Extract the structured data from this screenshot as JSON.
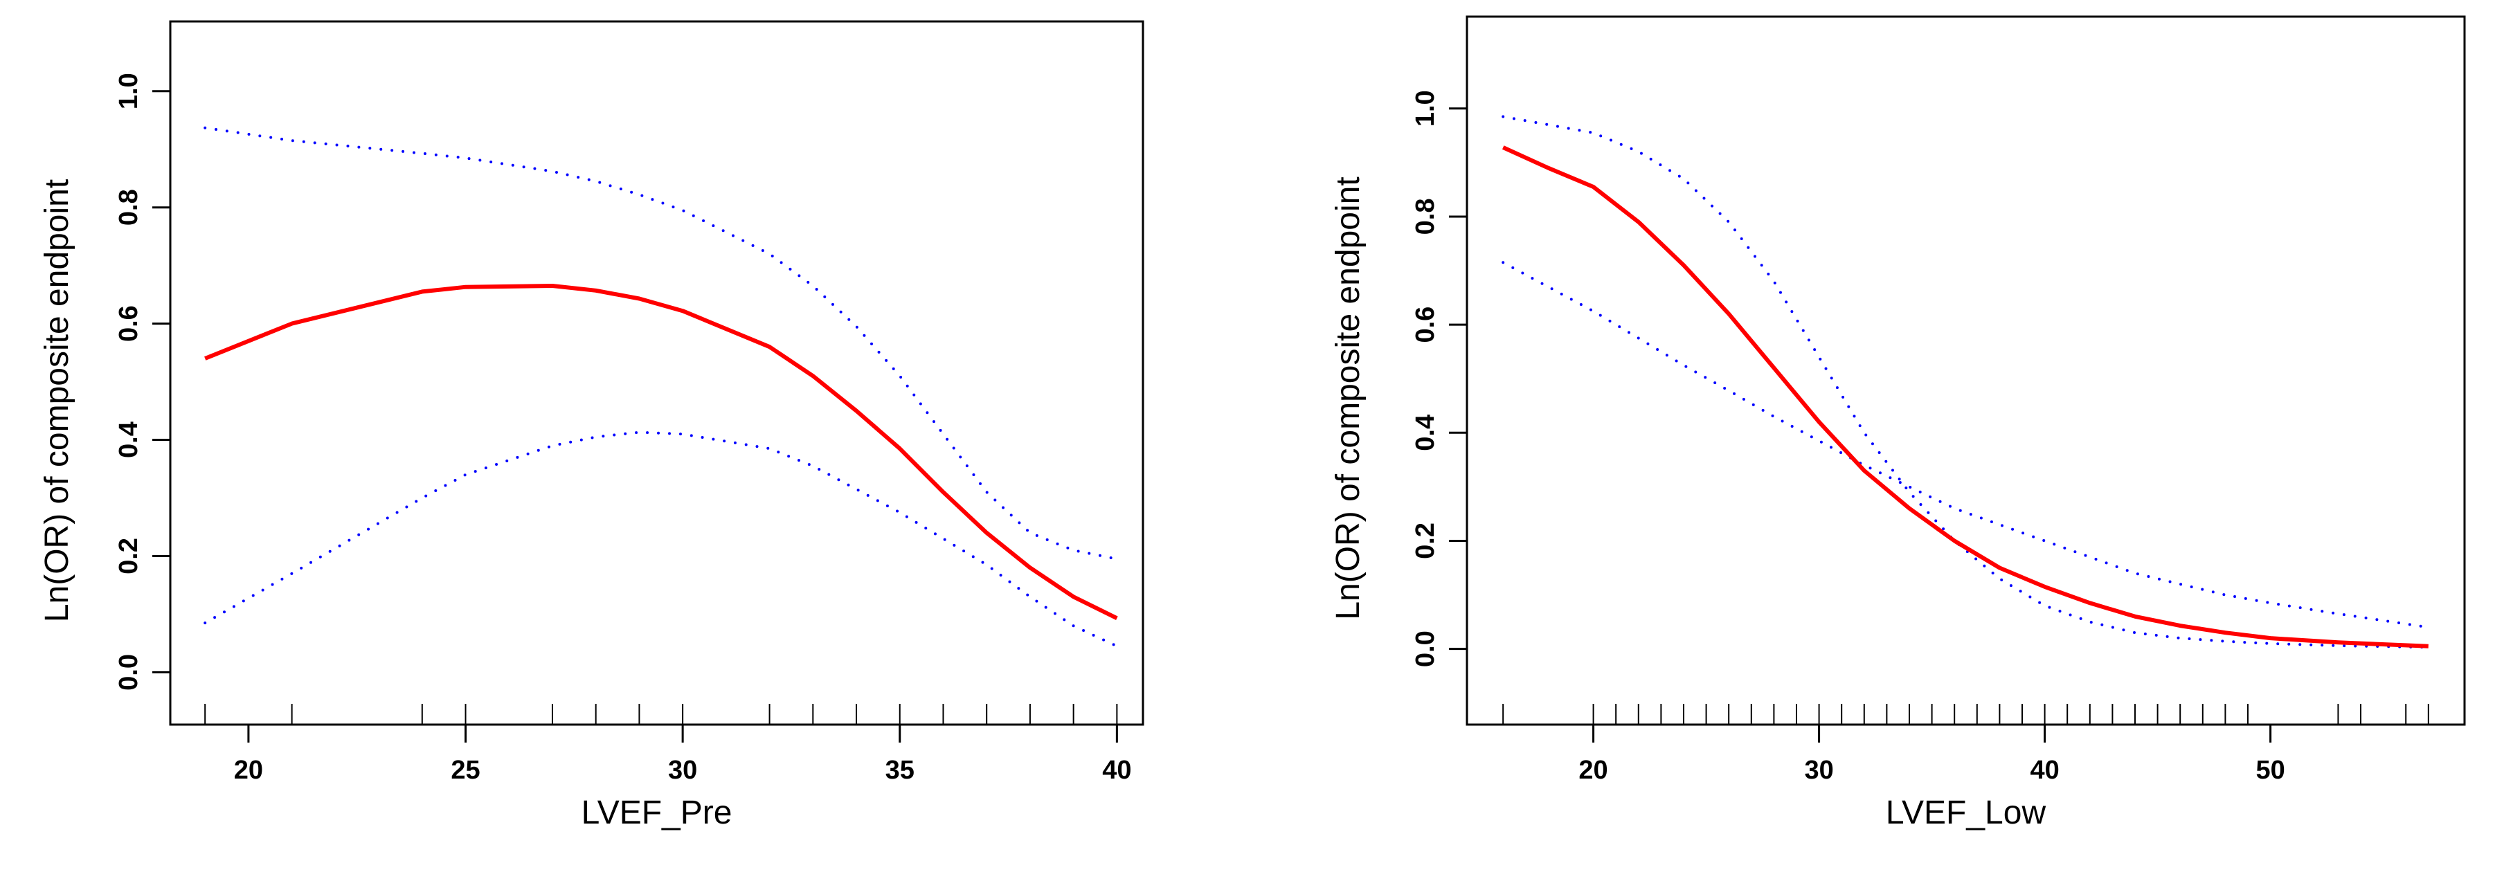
{
  "colors": {
    "fit": "#ff0000",
    "ci": "#0000ff",
    "axis": "#000000"
  },
  "chart_data": [
    {
      "type": "line",
      "xlabel": "LVEF_Pre",
      "ylabel": "Ln(OR) of composite endpoint",
      "xlim": [
        18.2,
        40.6
      ],
      "ylim": [
        -0.09,
        1.12
      ],
      "xticks": [
        20,
        25,
        30,
        35,
        40
      ],
      "yticks": [
        "0.0",
        "0.2",
        "0.4",
        "0.6",
        "0.8",
        "1.0"
      ],
      "grid": false,
      "x": [
        19,
        21,
        24,
        25,
        27,
        28,
        29,
        30,
        32,
        33,
        34,
        35,
        36,
        37,
        38,
        39,
        40
      ],
      "series": [
        {
          "role": "fit",
          "style": "solid",
          "values": [
            0.54,
            0.6,
            0.655,
            0.663,
            0.665,
            0.657,
            0.643,
            0.622,
            0.56,
            0.51,
            0.45,
            0.385,
            0.31,
            0.24,
            0.18,
            0.13,
            0.093
          ]
        },
        {
          "role": "upper",
          "style": "dotted",
          "values": [
            0.937,
            0.915,
            0.893,
            0.885,
            0.862,
            0.845,
            0.822,
            0.795,
            0.72,
            0.665,
            0.595,
            0.51,
            0.41,
            0.31,
            0.24,
            0.21,
            0.195
          ]
        },
        {
          "role": "lower",
          "style": "dotted",
          "values": [
            0.085,
            0.17,
            0.3,
            0.34,
            0.39,
            0.405,
            0.413,
            0.41,
            0.385,
            0.355,
            0.315,
            0.275,
            0.23,
            0.185,
            0.13,
            0.08,
            0.045
          ]
        }
      ],
      "rug": [
        19,
        21,
        24,
        25,
        27,
        28,
        29,
        30,
        32,
        33,
        34,
        35,
        36,
        37,
        38,
        39,
        40
      ]
    },
    {
      "type": "line",
      "xlabel": "LVEF_Low",
      "ylabel": "Ln(OR) of composite endpoint",
      "xlim": [
        14.4,
        58.6
      ],
      "ylim": [
        -0.14,
        1.17
      ],
      "xticks": [
        20,
        30,
        40,
        50
      ],
      "yticks": [
        "0.0",
        "0.2",
        "0.4",
        "0.6",
        "0.8",
        "1.0"
      ],
      "grid": false,
      "x": [
        16,
        18,
        20,
        22,
        24,
        26,
        28,
        30,
        32,
        34,
        36,
        38,
        40,
        42,
        44,
        46,
        48,
        50,
        53,
        57
      ],
      "series": [
        {
          "role": "fit",
          "style": "solid",
          "values": [
            0.928,
            0.89,
            0.855,
            0.79,
            0.71,
            0.62,
            0.52,
            0.42,
            0.33,
            0.26,
            0.2,
            0.15,
            0.115,
            0.085,
            0.06,
            0.043,
            0.03,
            0.02,
            0.012,
            0.005
          ]
        },
        {
          "role": "upper",
          "style": "dotted",
          "values": [
            0.985,
            0.97,
            0.955,
            0.92,
            0.87,
            0.79,
            0.68,
            0.54,
            0.4,
            0.29,
            0.2,
            0.13,
            0.08,
            0.05,
            0.03,
            0.02,
            0.014,
            0.01,
            0.006,
            0.003
          ]
        },
        {
          "role": "lower",
          "style": "dotted",
          "values": [
            0.715,
            0.67,
            0.625,
            0.575,
            0.525,
            0.478,
            0.43,
            0.385,
            0.34,
            0.3,
            0.26,
            0.23,
            0.2,
            0.17,
            0.14,
            0.12,
            0.1,
            0.085,
            0.065,
            0.04
          ]
        }
      ],
      "rug": [
        16,
        20,
        21,
        22,
        23,
        24,
        25,
        26,
        27,
        28,
        29,
        30,
        31,
        32,
        33,
        34,
        35,
        36,
        37,
        38,
        39,
        40,
        41,
        42,
        43,
        44,
        45,
        46,
        47,
        48,
        49,
        53,
        54,
        56,
        57
      ]
    }
  ]
}
